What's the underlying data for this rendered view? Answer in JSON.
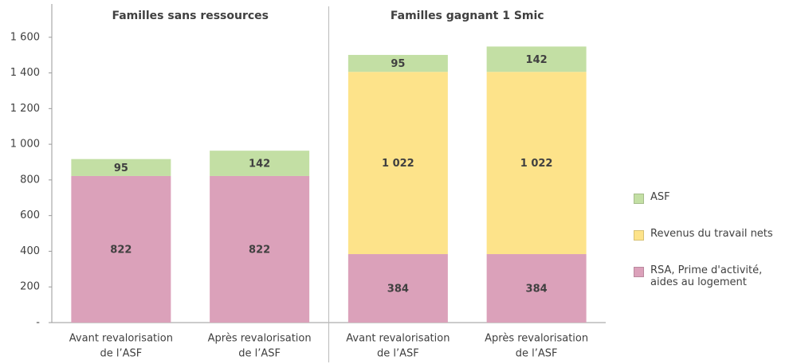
{
  "chart_data": {
    "type": "stacked-bar",
    "groups": [
      {
        "title": "Familles sans ressources",
        "categories": [
          [
            "Avant revalorisation",
            "de l’ASF"
          ],
          [
            "Après revalorisation",
            "de l’ASF"
          ]
        ]
      },
      {
        "title": "Familles gagnant 1 Smic",
        "categories": [
          [
            "Avant revalorisation",
            "de l’ASF"
          ],
          [
            "Après revalorisation",
            "de l’ASF"
          ]
        ]
      }
    ],
    "series": [
      {
        "name": "RSA, Prime d'activité, aides au logement",
        "color": "#dba1ba",
        "values": [
          822,
          822,
          384,
          384
        ]
      },
      {
        "name": "Revenus du travail nets",
        "color": "#fde38a",
        "values": [
          null,
          null,
          1022,
          1022
        ],
        "value_labels": [
          null,
          null,
          "1 022",
          "1 022"
        ]
      },
      {
        "name": "ASF",
        "color": "#c3dfa4",
        "values": [
          95,
          142,
          95,
          142
        ]
      }
    ],
    "ylim": [
      0,
      1800
    ],
    "yticks": [
      {
        "value": 0,
        "label": "-"
      },
      200,
      400,
      600,
      800,
      {
        "value": 1000,
        "label": "1 000"
      },
      {
        "value": 1200,
        "label": "1 200"
      },
      {
        "value": 1400,
        "label": "1 400"
      },
      {
        "value": 1600,
        "label": "1 600"
      }
    ],
    "legend": "right"
  }
}
